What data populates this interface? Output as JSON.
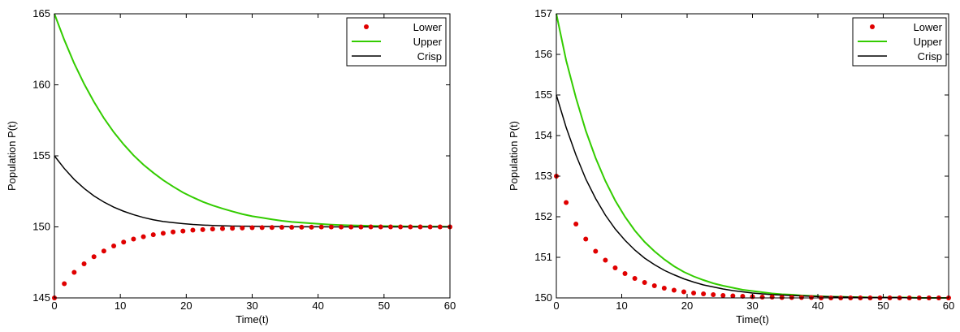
{
  "chart_data": [
    {
      "type": "line",
      "xlabel": "Time(t)",
      "ylabel": "Population P(t)",
      "xlim": [
        0,
        60
      ],
      "ylim": [
        145,
        165
      ],
      "xticks": [
        0,
        10,
        20,
        30,
        40,
        50,
        60
      ],
      "yticks": [
        145,
        150,
        155,
        160,
        165
      ],
      "grid": false,
      "legend": "top-right",
      "x": [
        0,
        1.5,
        3,
        4.5,
        6,
        7.5,
        9,
        10.5,
        12,
        13.5,
        15,
        16.5,
        18,
        19.5,
        21,
        22.5,
        24,
        25.5,
        27,
        28.5,
        30,
        31.5,
        33,
        34.5,
        36,
        37.5,
        39,
        40.5,
        42,
        43.5,
        45,
        46.5,
        48,
        49.5,
        51,
        52.5,
        54,
        55.5,
        57,
        58.5,
        60
      ],
      "series": [
        {
          "name": "Lower",
          "style": "dots",
          "color": "#e00000",
          "values": [
            145.0,
            146.0,
            146.8,
            147.4,
            147.9,
            148.3,
            148.66,
            148.93,
            149.14,
            149.31,
            149.45,
            149.55,
            149.64,
            149.71,
            149.77,
            149.81,
            149.85,
            149.88,
            149.9,
            149.92,
            149.94,
            149.95,
            149.96,
            149.97,
            149.97,
            149.98,
            149.98,
            149.99,
            149.99,
            149.99,
            149.99,
            149.99,
            150.0,
            150.0,
            150.0,
            150.0,
            150.0,
            150.0,
            150.0,
            150.0,
            150.0
          ]
        },
        {
          "name": "Upper",
          "style": "line",
          "color": "#33cc00",
          "values": [
            165.0,
            163.16,
            161.51,
            160.07,
            158.8,
            157.66,
            156.67,
            155.81,
            155.04,
            154.38,
            153.81,
            153.29,
            152.84,
            152.42,
            152.08,
            151.77,
            151.51,
            151.29,
            151.09,
            150.9,
            150.75,
            150.64,
            150.53,
            150.43,
            150.35,
            150.3,
            150.25,
            150.2,
            150.16,
            150.13,
            150.11,
            150.09,
            150.07,
            150.06,
            150.05,
            150.04,
            150.03,
            150.03,
            150.02,
            150.02,
            150.01
          ]
        },
        {
          "name": "Crisp",
          "style": "line",
          "color": "#000000",
          "values": [
            155.0,
            154.11,
            153.34,
            152.71,
            152.18,
            151.75,
            151.39,
            151.1,
            150.86,
            150.66,
            150.5,
            150.38,
            150.3,
            150.23,
            150.17,
            150.13,
            150.1,
            150.08,
            150.06,
            150.05,
            150.04,
            150.03,
            150.02,
            150.02,
            150.01,
            150.01,
            150.01,
            150.01,
            150.0,
            150.0,
            150.0,
            150.0,
            150.0,
            150.0,
            150.0,
            150.0,
            150.0,
            150.0,
            150.0,
            150.0,
            150.0
          ]
        }
      ]
    },
    {
      "type": "line",
      "xlabel": "Time(t)",
      "ylabel": "Population P(t)",
      "xlim": [
        0,
        60
      ],
      "ylim": [
        150,
        157
      ],
      "xticks": [
        0,
        10,
        20,
        30,
        40,
        50,
        60
      ],
      "yticks": [
        150,
        151,
        152,
        153,
        154,
        155,
        156,
        157
      ],
      "grid": false,
      "legend": "top-right",
      "x": [
        0,
        1.5,
        3,
        4.5,
        6,
        7.5,
        9,
        10.5,
        12,
        13.5,
        15,
        16.5,
        18,
        19.5,
        21,
        22.5,
        24,
        25.5,
        27,
        28.5,
        30,
        31.5,
        33,
        34.5,
        36,
        37.5,
        39,
        40.5,
        42,
        43.5,
        45,
        46.5,
        48,
        49.5,
        51,
        52.5,
        54,
        55.5,
        57,
        58.5,
        60
      ],
      "series": [
        {
          "name": "Lower",
          "style": "dots",
          "color": "#e00000",
          "values": [
            153.0,
            152.35,
            151.82,
            151.45,
            151.15,
            150.93,
            150.74,
            150.6,
            150.48,
            150.38,
            150.3,
            150.24,
            150.19,
            150.15,
            150.12,
            150.1,
            150.08,
            150.06,
            150.05,
            150.04,
            150.03,
            150.02,
            150.02,
            150.01,
            150.01,
            150.01,
            150.01,
            150.0,
            150.0,
            150.0,
            150.0,
            150.0,
            150.0,
            150.0,
            150.0,
            150.0,
            150.0,
            150.0,
            150.0,
            150.0,
            150.0
          ]
        },
        {
          "name": "Upper",
          "style": "line",
          "color": "#33cc00",
          "values": [
            157.0,
            155.85,
            154.93,
            154.12,
            153.45,
            152.88,
            152.4,
            152.0,
            151.66,
            151.38,
            151.15,
            150.95,
            150.78,
            150.64,
            150.53,
            150.44,
            150.36,
            150.3,
            150.25,
            150.2,
            150.17,
            150.14,
            150.11,
            150.09,
            150.08,
            150.06,
            150.05,
            150.04,
            150.03,
            150.03,
            150.02,
            150.02,
            150.01,
            150.01,
            150.01,
            150.01,
            150.01,
            150.0,
            150.0,
            150.0,
            150.0
          ]
        },
        {
          "name": "Crisp",
          "style": "line",
          "color": "#000000",
          "values": [
            155.0,
            154.2,
            153.52,
            152.93,
            152.45,
            152.04,
            151.7,
            151.42,
            151.18,
            150.98,
            150.82,
            150.68,
            150.57,
            150.47,
            150.39,
            150.32,
            150.27,
            150.22,
            150.18,
            150.15,
            150.12,
            150.1,
            150.08,
            150.07,
            150.06,
            150.05,
            150.04,
            150.03,
            150.03,
            150.02,
            150.02,
            150.01,
            150.01,
            150.01,
            150.01,
            150.01,
            150.0,
            150.0,
            150.0,
            150.0,
            150.0
          ]
        }
      ]
    }
  ]
}
